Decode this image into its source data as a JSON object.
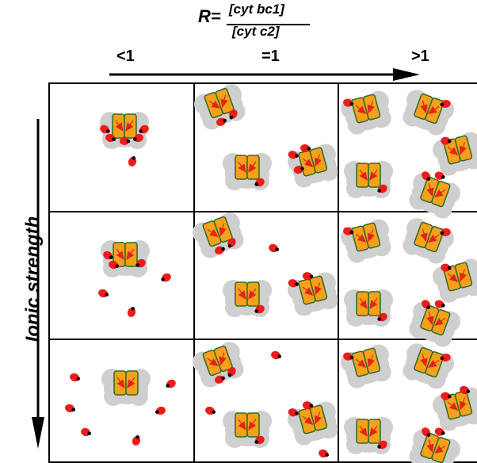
{
  "header": {
    "r_symbol": "R=",
    "numerator": "[cyt bc1]",
    "denominator": "[cyt c2]",
    "ticks": [
      "<1",
      "=1",
      ">1"
    ]
  },
  "side_label": "Ionic strength",
  "colors": {
    "complex_fill": "#f7a11a",
    "complex_stroke": "#2d6b2a",
    "halo": "#cfcfcf",
    "cyt_c2": "#ee1b1b",
    "heme_arrow": "#e0251b",
    "grid": "#000000"
  },
  "grid": {
    "rows": 3,
    "columns": 3
  }
}
